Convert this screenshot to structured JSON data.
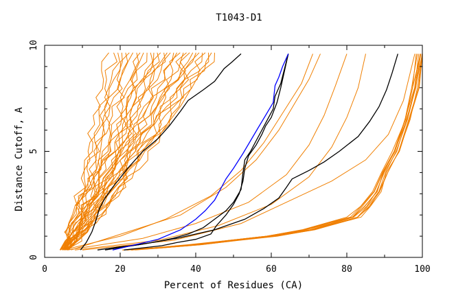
{
  "chart_data": {
    "type": "line",
    "title": "T1043-D1",
    "xlabel": "Percent of Residues (CA)",
    "ylabel": "Distance Cutoff, A",
    "xlim": [
      0,
      100
    ],
    "ylim": [
      0,
      10
    ],
    "x_ticks": [
      0,
      20,
      40,
      60,
      80,
      100
    ],
    "y_ticks": [
      0,
      5,
      10
    ],
    "colors": {
      "orange": "#f07f00",
      "black": "#000000",
      "blue": "#0000ff",
      "frame": "#000000",
      "background": "#ffffff"
    },
    "band_steep": {
      "count": 32,
      "color": "orange",
      "start_x_range": [
        4.0,
        6.5
      ],
      "end_x_range": [
        17,
        45
      ],
      "y_range": [
        0.35,
        9.65
      ]
    },
    "band_shallow": {
      "count": 10,
      "color": "orange",
      "x": [
        22,
        30,
        40,
        50,
        60,
        70,
        76,
        82,
        85,
        88,
        90,
        93,
        96,
        98,
        99.5
      ],
      "y": [
        0.35,
        0.45,
        0.6,
        0.8,
        1.0,
        1.3,
        1.6,
        1.9,
        2.4,
        3.1,
        4.0,
        5.0,
        6.5,
        8.0,
        9.6
      ],
      "x_spread": 1.6
    },
    "series": [
      {
        "name": "model-black-1",
        "color": "black",
        "x": [
          9.5,
          11,
          12.5,
          13.5,
          14.5,
          16,
          18,
          22,
          26,
          30,
          33,
          36,
          38,
          42,
          45,
          47.5,
          49.5,
          52
        ],
        "y": [
          0.35,
          0.7,
          1.2,
          1.7,
          2.3,
          2.8,
          3.3,
          4.2,
          5.0,
          5.6,
          6.2,
          6.9,
          7.4,
          7.9,
          8.3,
          8.9,
          9.2,
          9.6
        ]
      },
      {
        "name": "model-black-2",
        "color": "black",
        "x": [
          14,
          20,
          25,
          30,
          34,
          38,
          42,
          45,
          48,
          50,
          52,
          52.5,
          53,
          54.5,
          56,
          57.5,
          59,
          60.5,
          61,
          62.5,
          63.5,
          64.5
        ],
        "y": [
          0.35,
          0.5,
          0.6,
          0.75,
          0.9,
          1.1,
          1.4,
          1.8,
          2.2,
          2.6,
          3.2,
          4.0,
          4.6,
          5.0,
          5.5,
          6.0,
          6.5,
          7.0,
          7.6,
          8.2,
          8.9,
          9.6
        ]
      },
      {
        "name": "model-black-3",
        "color": "black",
        "x": [
          21,
          26,
          31,
          35,
          40,
          44,
          45.5,
          48,
          50,
          51.5,
          52.5,
          53,
          54,
          56,
          57.5,
          58.5,
          60,
          61.5,
          62.5,
          63.5,
          64.5
        ],
        "y": [
          0.35,
          0.45,
          0.55,
          0.7,
          0.85,
          1.1,
          1.5,
          2.0,
          2.5,
          3.0,
          3.6,
          4.2,
          4.8,
          5.3,
          5.8,
          6.2,
          6.6,
          7.3,
          8.0,
          8.8,
          9.6
        ]
      },
      {
        "name": "model-black-4",
        "color": "black",
        "x": [
          16,
          25,
          35,
          45,
          53,
          58,
          62,
          64,
          65.5,
          70,
          74,
          78,
          83,
          86,
          88.5,
          90.5,
          92,
          93.5
        ],
        "y": [
          0.35,
          0.6,
          0.9,
          1.3,
          1.8,
          2.3,
          2.8,
          3.3,
          3.7,
          4.1,
          4.5,
          5.0,
          5.7,
          6.4,
          7.1,
          7.9,
          8.7,
          9.6
        ]
      },
      {
        "name": "model-blue",
        "color": "blue",
        "x": [
          18,
          24,
          30,
          36,
          40,
          42.5,
          45,
          46.5,
          48,
          50,
          52.5,
          54.5,
          56.5,
          58.5,
          60.5,
          61,
          62,
          63,
          64.5
        ],
        "y": [
          0.35,
          0.6,
          0.85,
          1.3,
          1.8,
          2.2,
          2.7,
          3.2,
          3.7,
          4.2,
          4.9,
          5.5,
          6.1,
          6.7,
          7.3,
          8.1,
          8.5,
          9.0,
          9.6
        ]
      }
    ]
  }
}
